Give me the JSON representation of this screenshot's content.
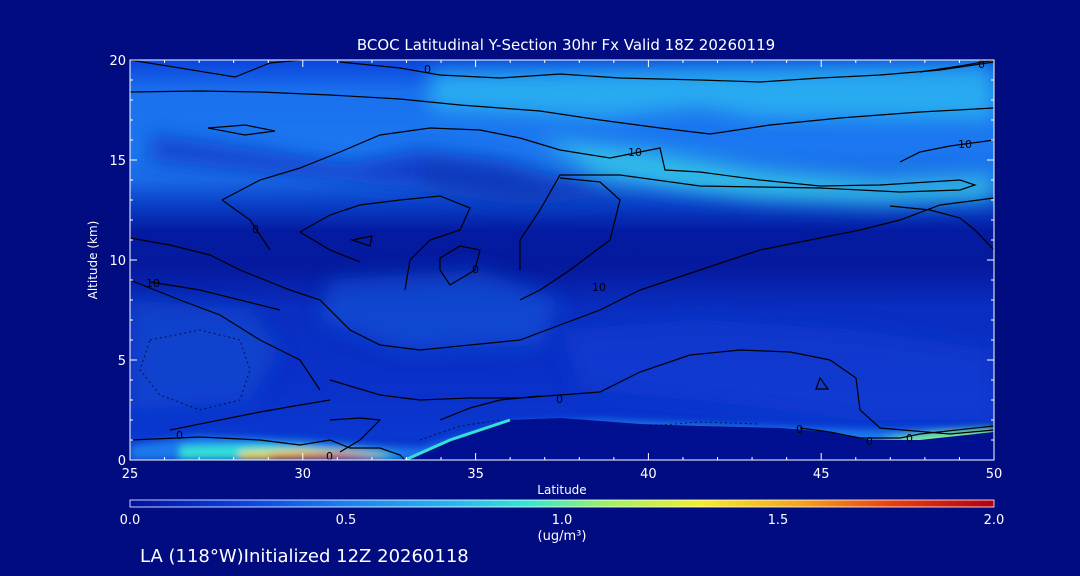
{
  "chart_data": {
    "type": "heatmap",
    "title": "BCOC Latitudinal Y-Section 30hr  Fx Valid 18Z 20260119",
    "xlabel": "Latitude",
    "ylabel": "Altitude (km)",
    "xlim": [
      25,
      50
    ],
    "ylim": [
      0,
      20
    ],
    "x_ticks": [
      "25",
      "30",
      "35",
      "40",
      "45",
      "50"
    ],
    "y_ticks": [
      "0",
      "5",
      "10",
      "15",
      "20"
    ],
    "colorbar": {
      "range": [
        0.0,
        2.0
      ],
      "ticks": [
        "0.0",
        "0.5",
        "1.0",
        "1.5",
        "2.0"
      ],
      "unit_label": "(ug/m³)",
      "colors": [
        "#0010a0",
        "#0a3cdc",
        "#1e7ff0",
        "#2ab8f0",
        "#34e6d6",
        "#9bf26a",
        "#f5ee2a",
        "#f5a020",
        "#e84010",
        "#b00010"
      ]
    },
    "contour_labels": [
      "0",
      "0",
      "10",
      "10",
      "0",
      "10",
      "0",
      "10",
      "0",
      "0",
      "0",
      "0",
      "0",
      "0"
    ],
    "footer": "LA (118°W)Initialized 12Z 20260118"
  }
}
